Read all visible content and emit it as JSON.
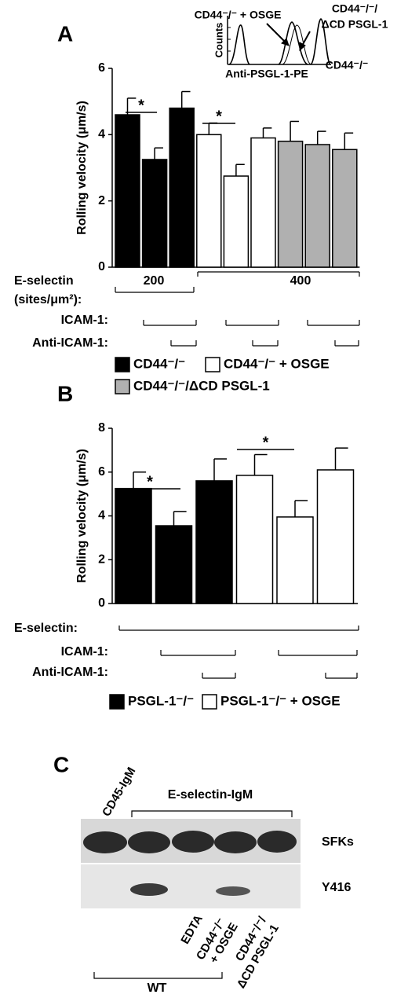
{
  "chart_data": [
    {
      "type": "bar",
      "title": "A",
      "ylabel": "Rolling velocity (μm/s)",
      "ylim": [
        0,
        6
      ],
      "yticks": [
        0,
        2,
        4,
        6
      ],
      "series": [
        {
          "name": "CD44⁻/⁻",
          "color": "#000000",
          "values": [
            4.6,
            3.25,
            4.8,
            null,
            null,
            null,
            null,
            null,
            null
          ],
          "errors": [
            0.5,
            0.35,
            0.5,
            null,
            null,
            null,
            null,
            null,
            null
          ]
        },
        {
          "name": "CD44⁻/⁻ + OSGE",
          "color": "#ffffff",
          "values": [
            null,
            null,
            null,
            4.0,
            2.75,
            3.9,
            null,
            null,
            null
          ],
          "errors": [
            null,
            null,
            null,
            0.35,
            0.35,
            0.3,
            null,
            null,
            null
          ]
        },
        {
          "name": "CD44⁻/⁻/ΔCD PSGL-1",
          "color": "#b0b0b0",
          "values": [
            null,
            null,
            null,
            null,
            null,
            null,
            3.8,
            3.7,
            3.55
          ],
          "errors": [
            null,
            null,
            null,
            null,
            null,
            null,
            0.6,
            0.4,
            0.5
          ]
        }
      ],
      "annotations": [
        "*",
        "*"
      ],
      "conditions": [
        "E-selectin",
        "(sites/μm²):",
        "200",
        "400",
        "ICAM-1:",
        "Anti-ICAM-1:"
      ],
      "inset": {
        "ylabel": "Counts",
        "xlabel": "Anti-PSGL-1-PE",
        "labels": [
          "CD44⁻/⁻ + OSGE",
          "CD44⁻/⁻/",
          "ΔCD PSGL-1",
          "CD44⁻/⁻"
        ]
      }
    },
    {
      "type": "bar",
      "title": "B",
      "ylabel": "Rolling velocity (μm/s)",
      "ylim": [
        0,
        8
      ],
      "yticks": [
        0,
        2,
        4,
        6,
        8
      ],
      "series": [
        {
          "name": "PSGL-1⁻/⁻",
          "color": "#000000",
          "values": [
            5.25,
            3.55,
            5.6,
            null,
            null,
            null
          ],
          "errors": [
            0.75,
            0.65,
            1.0,
            null,
            null,
            null
          ]
        },
        {
          "name": "PSGL-1⁻/⁻ + OSGE",
          "color": "#ffffff",
          "values": [
            null,
            null,
            null,
            5.85,
            3.95,
            6.1
          ],
          "errors": [
            null,
            null,
            null,
            0.95,
            0.75,
            1.0
          ]
        }
      ],
      "annotations": [
        "*",
        "*"
      ],
      "conditions": [
        "E-selectin:",
        "ICAM-1:",
        "Anti-ICAM-1:"
      ]
    }
  ],
  "blot": {
    "title": "C",
    "lane_header": "CD45-IgM",
    "group_header": "E-selectin-IgM",
    "row_labels": [
      "SFKs",
      "Y416"
    ],
    "lane_labels": [
      "EDTA",
      "CD44⁻/⁻",
      "+ OSGE",
      "CD44⁻/⁻/",
      "ΔCD PSGL-1"
    ],
    "group_footer": "WT"
  }
}
